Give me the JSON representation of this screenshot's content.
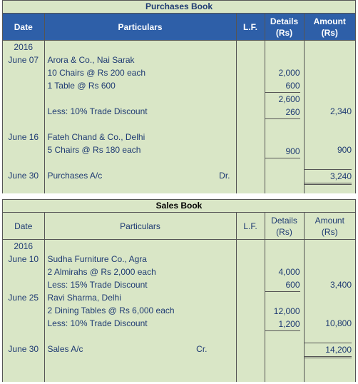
{
  "purchases": {
    "title": "Purchases Book",
    "headers": {
      "date": "Date",
      "particulars": "Particulars",
      "lf": "L.F.",
      "details": "Details",
      "details_unit": "(Rs)",
      "amount": "Amount",
      "amount_unit": "(Rs)"
    },
    "year": "2016",
    "entries": [
      {
        "date": "June 07",
        "lines": [
          "Arora & Co., Nai Sarak",
          "10 Chairs @ Rs 200 each",
          "1 Table @ Rs 600"
        ],
        "details": [
          "2,000",
          "600"
        ],
        "subtotal": "2,600",
        "discount_label": "Less: 10% Trade Discount",
        "discount": "260",
        "amount": "2,340"
      },
      {
        "date": "June 16",
        "lines": [
          "Fateh Chand & Co., Delhi",
          "5 Chairs @ Rs 180 each"
        ],
        "details": [
          "900"
        ],
        "amount": "900"
      }
    ],
    "total": {
      "date": "June 30",
      "label": "Purchases A/c",
      "side": "Dr.",
      "amount": "3,240"
    }
  },
  "sales": {
    "title": "Sales Book",
    "headers": {
      "date": "Date",
      "particulars": "Particulars",
      "lf": "L.F.",
      "details": "Details",
      "details_unit": "(Rs)",
      "amount": "Amount",
      "amount_unit": "(Rs)"
    },
    "year": "2016",
    "entries": [
      {
        "date": "June 10",
        "lines": [
          "Sudha Furniture Co., Agra",
          "2 Almirahs @ Rs 2,000 each",
          "Less: 15% Trade Discount"
        ],
        "details": [
          "4,000",
          "600"
        ],
        "amount": "3,400"
      },
      {
        "date": "June 25",
        "lines": [
          "Ravi Sharma, Delhi",
          "2 Dining Tables @ Rs 6,000 each",
          "Less: 10% Trade Discount"
        ],
        "details": [
          "12,000",
          "1,200"
        ],
        "amount": "10,800"
      }
    ],
    "total": {
      "date": "June 30",
      "label": "Sales A/c",
      "side": "Cr.",
      "amount": "14,200"
    }
  }
}
